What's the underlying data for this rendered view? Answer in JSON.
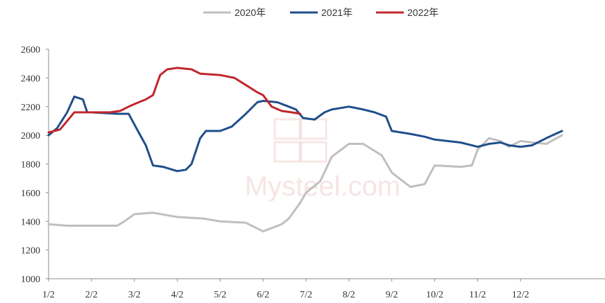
{
  "chart_data": {
    "type": "line",
    "title": "",
    "xlabel": "",
    "ylabel": "",
    "x_ticks": [
      "1/2",
      "2/2",
      "3/2",
      "4/2",
      "5/2",
      "6/2",
      "7/2",
      "8/2",
      "9/2",
      "10/2",
      "11/2",
      "12/2"
    ],
    "ylim": [
      1000,
      2600
    ],
    "y_ticks": [
      1000,
      1200,
      1400,
      1600,
      1800,
      2000,
      2200,
      2400,
      2600
    ],
    "grid": false,
    "legend_position": "top-center",
    "watermark": "Mysteel.com",
    "series": [
      {
        "name": "2020年",
        "color": "#bfbfbf",
        "points": [
          [
            "1/2",
            1380
          ],
          [
            "1/15",
            1370
          ],
          [
            "2/2",
            1370
          ],
          [
            "2/20",
            1370
          ],
          [
            "2/25",
            1400
          ],
          [
            "3/2",
            1450
          ],
          [
            "3/15",
            1460
          ],
          [
            "4/2",
            1430
          ],
          [
            "4/20",
            1420
          ],
          [
            "5/2",
            1400
          ],
          [
            "5/20",
            1390
          ],
          [
            "6/2",
            1330
          ],
          [
            "6/15",
            1380
          ],
          [
            "6/20",
            1420
          ],
          [
            "6/28",
            1530
          ],
          [
            "7/2",
            1600
          ],
          [
            "7/12",
            1680
          ],
          [
            "7/20",
            1850
          ],
          [
            "8/2",
            1940
          ],
          [
            "8/12",
            1940
          ],
          [
            "8/25",
            1860
          ],
          [
            "9/2",
            1740
          ],
          [
            "9/15",
            1640
          ],
          [
            "9/25",
            1660
          ],
          [
            "10/2",
            1790
          ],
          [
            "10/20",
            1780
          ],
          [
            "10/28",
            1790
          ],
          [
            "11/2",
            1900
          ],
          [
            "11/10",
            1980
          ],
          [
            "11/18",
            1960
          ],
          [
            "11/24",
            1920
          ],
          [
            "12/2",
            1960
          ],
          [
            "12/10",
            1950
          ],
          [
            "12/20",
            1940
          ],
          [
            "12/31",
            2000
          ]
        ]
      },
      {
        "name": "2021年",
        "color": "#1f4e8c",
        "points": [
          [
            "1/2",
            2000
          ],
          [
            "1/8",
            2050
          ],
          [
            "1/15",
            2160
          ],
          [
            "1/20",
            2270
          ],
          [
            "1/26",
            2250
          ],
          [
            "1/29",
            2160
          ],
          [
            "2/2",
            2160
          ],
          [
            "2/20",
            2150
          ],
          [
            "2/28",
            2150
          ],
          [
            "3/5",
            2020
          ],
          [
            "3/10",
            1930
          ],
          [
            "3/15",
            1790
          ],
          [
            "3/22",
            1780
          ],
          [
            "4/2",
            1750
          ],
          [
            "4/8",
            1760
          ],
          [
            "4/12",
            1800
          ],
          [
            "4/18",
            1980
          ],
          [
            "4/22",
            2030
          ],
          [
            "5/2",
            2030
          ],
          [
            "5/10",
            2060
          ],
          [
            "5/20",
            2150
          ],
          [
            "5/28",
            2230
          ],
          [
            "6/2",
            2240
          ],
          [
            "6/12",
            2230
          ],
          [
            "6/20",
            2200
          ],
          [
            "6/25",
            2180
          ],
          [
            "6/30",
            2120
          ],
          [
            "7/8",
            2110
          ],
          [
            "7/15",
            2160
          ],
          [
            "7/20",
            2180
          ],
          [
            "8/2",
            2200
          ],
          [
            "8/12",
            2180
          ],
          [
            "8/20",
            2160
          ],
          [
            "8/28",
            2130
          ],
          [
            "9/2",
            2030
          ],
          [
            "9/15",
            2010
          ],
          [
            "9/25",
            1990
          ],
          [
            "10/2",
            1970
          ],
          [
            "10/20",
            1950
          ],
          [
            "10/28",
            1930
          ],
          [
            "11/2",
            1920
          ],
          [
            "11/10",
            1940
          ],
          [
            "11/18",
            1950
          ],
          [
            "11/24",
            1930
          ],
          [
            "12/2",
            1920
          ],
          [
            "12/10",
            1930
          ],
          [
            "12/20",
            1980
          ],
          [
            "12/31",
            2030
          ]
        ]
      },
      {
        "name": "2022年",
        "color": "#c0262d",
        "points": [
          [
            "1/2",
            2020
          ],
          [
            "1/10",
            2040
          ],
          [
            "1/15",
            2100
          ],
          [
            "1/20",
            2160
          ],
          [
            "2/2",
            2160
          ],
          [
            "2/15",
            2160
          ],
          [
            "2/22",
            2170
          ],
          [
            "2/28",
            2200
          ],
          [
            "3/5",
            2230
          ],
          [
            "3/10",
            2250
          ],
          [
            "3/15",
            2280
          ],
          [
            "3/20",
            2420
          ],
          [
            "3/25",
            2460
          ],
          [
            "4/2",
            2470
          ],
          [
            "4/12",
            2460
          ],
          [
            "4/18",
            2430
          ],
          [
            "5/2",
            2420
          ],
          [
            "5/12",
            2400
          ],
          [
            "5/20",
            2350
          ],
          [
            "5/28",
            2300
          ],
          [
            "6/2",
            2280
          ],
          [
            "6/8",
            2200
          ],
          [
            "6/15",
            2170
          ],
          [
            "6/22",
            2160
          ],
          [
            "6/28",
            2150
          ]
        ]
      }
    ]
  }
}
